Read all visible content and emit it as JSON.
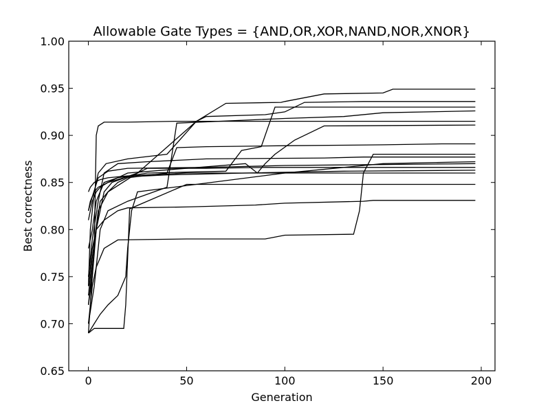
{
  "chart_data": {
    "type": "line",
    "title": "Allowable Gate Types = {AND,OR,XOR,NAND,NOR,XNOR}",
    "xlabel": "Generation",
    "ylabel": "Best correctness",
    "xlim": [
      -10,
      207
    ],
    "ylim": [
      0.65,
      1.0
    ],
    "xticks": [
      0,
      50,
      100,
      150,
      200
    ],
    "yticks": [
      0.65,
      0.7,
      0.75,
      0.8,
      0.85,
      0.9,
      0.95,
      1.0
    ],
    "xtick_labels": [
      "0",
      "50",
      "100",
      "150",
      "200"
    ],
    "ytick_labels": [
      "0.65",
      "0.70",
      "0.75",
      "0.80",
      "0.85",
      "0.90",
      "0.95",
      "1.00"
    ],
    "grid": false,
    "line_color": "#000000",
    "series": [
      {
        "x": [
          0,
          1,
          3,
          5,
          9,
          20,
          40,
          55,
          70,
          98,
          100,
          120,
          150,
          155,
          197
        ],
        "y": [
          0.74,
          0.8,
          0.84,
          0.86,
          0.87,
          0.875,
          0.88,
          0.915,
          0.934,
          0.935,
          0.936,
          0.944,
          0.945,
          0.949,
          0.949
        ]
      },
      {
        "x": [
          0,
          1,
          3,
          4,
          5,
          8,
          20,
          45,
          197
        ],
        "y": [
          0.69,
          0.72,
          0.78,
          0.9,
          0.91,
          0.914,
          0.914,
          0.915,
          0.915
        ]
      },
      {
        "x": [
          0,
          2,
          4,
          6,
          10,
          25,
          55,
          60,
          90,
          100,
          110,
          140,
          160,
          197
        ],
        "y": [
          0.72,
          0.76,
          0.8,
          0.83,
          0.84,
          0.86,
          0.915,
          0.92,
          0.922,
          0.925,
          0.935,
          0.936,
          0.936,
          0.936
        ]
      },
      {
        "x": [
          0,
          2,
          4,
          8,
          15,
          30,
          70,
          78,
          88,
          95,
          100,
          197
        ],
        "y": [
          0.78,
          0.8,
          0.83,
          0.85,
          0.855,
          0.86,
          0.862,
          0.884,
          0.888,
          0.93,
          0.93,
          0.93
        ]
      },
      {
        "x": [
          0,
          3,
          6,
          10,
          20,
          40,
          45,
          100,
          130,
          150,
          197
        ],
        "y": [
          0.7,
          0.74,
          0.8,
          0.82,
          0.83,
          0.845,
          0.913,
          0.918,
          0.92,
          0.924,
          0.926
        ]
      },
      {
        "x": [
          0,
          2,
          5,
          10,
          15,
          20,
          40,
          45,
          60,
          100,
          150,
          180,
          197
        ],
        "y": [
          0.73,
          0.77,
          0.82,
          0.84,
          0.85,
          0.855,
          0.86,
          0.887,
          0.888,
          0.889,
          0.89,
          0.891,
          0.891
        ]
      },
      {
        "x": [
          0,
          1,
          3,
          5,
          10,
          20,
          50,
          80,
          86,
          90,
          95,
          105,
          115,
          120,
          197
        ],
        "y": [
          0.82,
          0.83,
          0.84,
          0.845,
          0.85,
          0.86,
          0.865,
          0.87,
          0.86,
          0.87,
          0.88,
          0.895,
          0.905,
          0.91,
          0.911
        ]
      },
      {
        "x": [
          0,
          2,
          4,
          8,
          15,
          20,
          50,
          85,
          100,
          140,
          145,
          197
        ],
        "y": [
          0.74,
          0.78,
          0.8,
          0.81,
          0.82,
          0.823,
          0.824,
          0.826,
          0.828,
          0.83,
          0.831,
          0.831
        ]
      },
      {
        "x": [
          0,
          3,
          6,
          10,
          15,
          19,
          20,
          22,
          25,
          100,
          150,
          197
        ],
        "y": [
          0.69,
          0.7,
          0.71,
          0.72,
          0.73,
          0.75,
          0.78,
          0.82,
          0.84,
          0.86,
          0.87,
          0.872
        ]
      },
      {
        "x": [
          0,
          2,
          5,
          8,
          15,
          30,
          60,
          120,
          140,
          197
        ],
        "y": [
          0.75,
          0.79,
          0.83,
          0.86,
          0.87,
          0.872,
          0.875,
          0.876,
          0.877,
          0.877
        ]
      },
      {
        "x": [
          0,
          3,
          6,
          12,
          18,
          19,
          20,
          21,
          50,
          100,
          197
        ],
        "y": [
          0.69,
          0.695,
          0.695,
          0.695,
          0.695,
          0.72,
          0.77,
          0.822,
          0.848,
          0.848,
          0.848
        ]
      },
      {
        "x": [
          0,
          2,
          4,
          8,
          15,
          50,
          90,
          100,
          135,
          138,
          140,
          145,
          197
        ],
        "y": [
          0.7,
          0.74,
          0.76,
          0.78,
          0.789,
          0.79,
          0.79,
          0.794,
          0.795,
          0.82,
          0.86,
          0.88,
          0.88
        ]
      },
      {
        "x": [
          0,
          2,
          4,
          6,
          10,
          18,
          25,
          30,
          60,
          90,
          197
        ],
        "y": [
          0.81,
          0.83,
          0.84,
          0.845,
          0.85,
          0.855,
          0.86,
          0.865,
          0.865,
          0.866,
          0.866
        ]
      },
      {
        "x": [
          0,
          1,
          3,
          6,
          10,
          20,
          30,
          50,
          150,
          197
        ],
        "y": [
          0.84,
          0.845,
          0.85,
          0.853,
          0.855,
          0.857,
          0.858,
          0.86,
          0.86,
          0.86
        ]
      },
      {
        "x": [
          0,
          2,
          4,
          8,
          12,
          20,
          40,
          80,
          130,
          197
        ],
        "y": [
          0.72,
          0.75,
          0.8,
          0.84,
          0.85,
          0.856,
          0.858,
          0.86,
          0.862,
          0.863
        ]
      },
      {
        "x": [
          0,
          2,
          5,
          10,
          20,
          60,
          100,
          197
        ],
        "y": [
          0.82,
          0.835,
          0.855,
          0.862,
          0.865,
          0.866,
          0.868,
          0.87
        ]
      }
    ]
  }
}
